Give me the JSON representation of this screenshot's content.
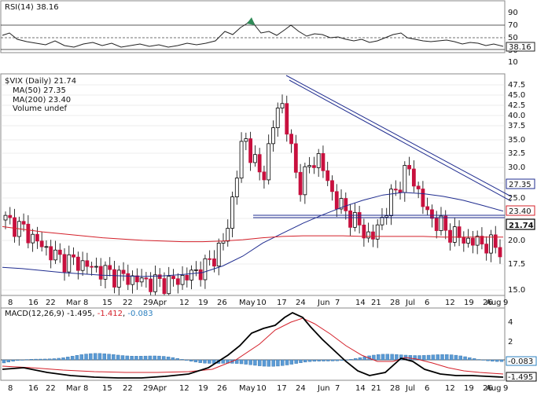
{
  "panels": {
    "rsi": {
      "label": "RSI(14) 38.16",
      "value_tag": "38.16",
      "ticks": [
        "90",
        "70",
        "50",
        "30",
        "10"
      ]
    },
    "price": {
      "title": "$VIX (Daily) 21.74",
      "legend": [
        {
          "text": "MA(50) 27.35",
          "color": "#1f2c8f"
        },
        {
          "text": "MA(200) 23.40",
          "color": "#d4202a"
        },
        {
          "text": "Volume undef",
          "color": "#555555"
        }
      ],
      "value_tags": {
        "ma50": "27.35",
        "ma200": "23.40",
        "last": "21.74"
      },
      "ticks": [
        "47.5",
        "45.0",
        "42.5",
        "40.0",
        "37.5",
        "35.0",
        "32.5",
        "30.0",
        "27.5",
        "25.0",
        "22.5",
        "20.0",
        "17.5",
        "15.0"
      ]
    },
    "dates": [
      "8",
      "16",
      "22",
      "Mar",
      "8",
      "15",
      "22",
      "29Apr",
      "12",
      "19",
      "26",
      "May",
      "10",
      "17",
      "24",
      "Jun",
      "7",
      "14",
      "21",
      "28",
      "Jul",
      "6",
      "12",
      "19",
      "26",
      "Aug",
      "9"
    ],
    "macd": {
      "label": "MACD(12,26,9)",
      "v1": "-1.495",
      "v2": "-1.412",
      "v3": "-0.083",
      "value_tags": {
        "signal_hist": "-0.083",
        "macd": "-1.495"
      },
      "ticks": [
        "4",
        "2",
        "0",
        "-2"
      ]
    }
  },
  "chart_data": {
    "type": "line",
    "title": "$VIX (Daily) 21.74",
    "ylim": [
      15,
      48
    ],
    "series": [
      {
        "name": "MA(50) 27.35",
        "color": "#1f2c8f",
        "values": [
          18.8,
          18.6,
          18.3,
          18.0,
          17.8,
          17.6,
          17.5,
          17.4,
          17.5,
          17.7,
          18.0,
          19.0,
          20.5,
          22.5,
          24.0,
          25.5,
          26.8,
          28.0,
          29.0,
          29.8,
          30.2,
          30.0,
          29.6,
          29.0,
          28.2,
          27.35
        ]
      },
      {
        "name": "MA(200) 23.40",
        "color": "#d4202a",
        "values": [
          25.0,
          24.6,
          24.2,
          23.9,
          23.6,
          23.3,
          23.1,
          22.9,
          22.8,
          22.7,
          22.7,
          22.8,
          23.0,
          23.3,
          23.5,
          23.6,
          23.6,
          23.6,
          23.5,
          23.5,
          23.5,
          23.5,
          23.4,
          23.4,
          23.4,
          23.4
        ]
      },
      {
        "name": "VIX close",
        "values": [
          26.0,
          24.5,
          22.0,
          20.0,
          19.5,
          18.5,
          17.5,
          17.0,
          16.5,
          16.5,
          17.5,
          19.0,
          23.0,
          39.0,
          32.0,
          45.0,
          31.0,
          36.0,
          29.0,
          26.0,
          23.0,
          29.0,
          34.0,
          27.0,
          24.5,
          23.0,
          22.5,
          21.74
        ]
      }
    ],
    "annotations": [
      "27.35",
      "23.40",
      "21.74"
    ]
  }
}
